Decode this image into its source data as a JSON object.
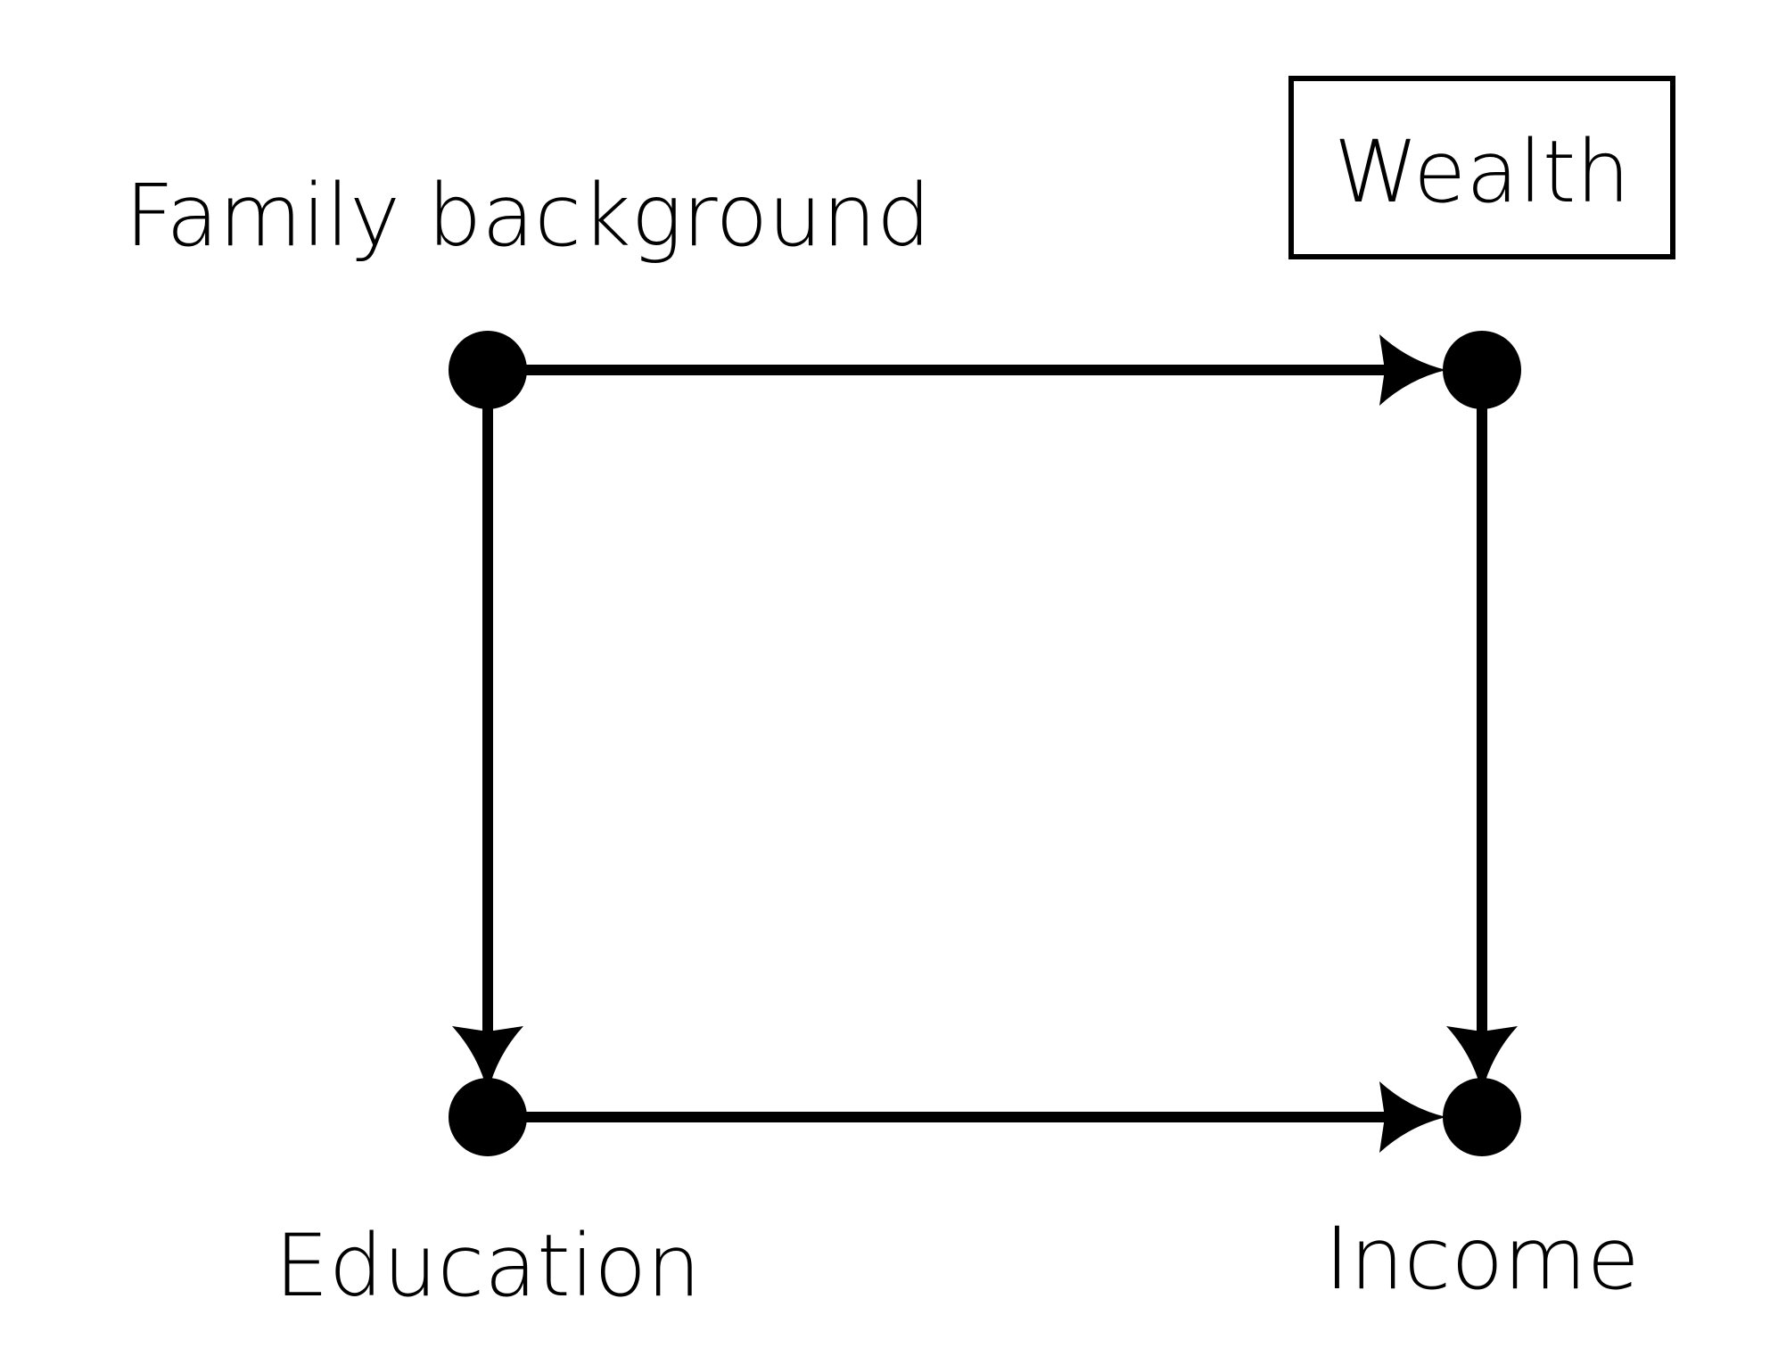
{
  "diagram": {
    "type": "causal-dag",
    "colors": {
      "ink": "#000000",
      "background": "#ffffff"
    },
    "nodes": [
      {
        "id": "family",
        "label": "Family background",
        "boxed": false
      },
      {
        "id": "wealth",
        "label": "Wealth",
        "boxed": true
      },
      {
        "id": "education",
        "label": "Education",
        "boxed": false
      },
      {
        "id": "income",
        "label": "Income",
        "boxed": false
      }
    ],
    "edges": [
      {
        "from": "family",
        "to": "wealth"
      },
      {
        "from": "family",
        "to": "education"
      },
      {
        "from": "wealth",
        "to": "income"
      },
      {
        "from": "education",
        "to": "income"
      }
    ]
  }
}
